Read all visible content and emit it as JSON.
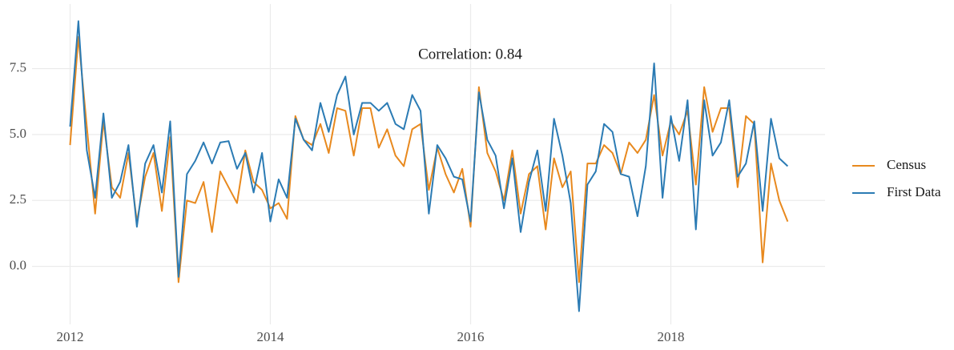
{
  "chart_data": {
    "type": "line",
    "annotation": "Correlation: 0.84",
    "x": [
      2012,
      2012.083,
      2012.167,
      2012.25,
      2012.333,
      2012.417,
      2012.5,
      2012.583,
      2012.667,
      2012.75,
      2012.833,
      2012.917,
      2013,
      2013.083,
      2013.167,
      2013.25,
      2013.333,
      2013.417,
      2013.5,
      2013.583,
      2013.667,
      2013.75,
      2013.833,
      2013.917,
      2014,
      2014.083,
      2014.167,
      2014.25,
      2014.333,
      2014.417,
      2014.5,
      2014.583,
      2014.667,
      2014.75,
      2014.833,
      2014.917,
      2015,
      2015.083,
      2015.167,
      2015.25,
      2015.333,
      2015.417,
      2015.5,
      2015.583,
      2015.667,
      2015.75,
      2015.833,
      2015.917,
      2016,
      2016.083,
      2016.167,
      2016.25,
      2016.333,
      2016.417,
      2016.5,
      2016.583,
      2016.667,
      2016.75,
      2016.833,
      2016.917,
      2017,
      2017.083,
      2017.167,
      2017.25,
      2017.333,
      2017.417,
      2017.5,
      2017.583,
      2017.667,
      2017.75,
      2017.833,
      2017.917,
      2018,
      2018.083,
      2018.167,
      2018.25,
      2018.333,
      2018.417,
      2018.5,
      2018.583,
      2018.667,
      2018.75,
      2018.833,
      2018.917,
      2019,
      2019.083,
      2019.167
    ],
    "series": [
      {
        "name": "Census",
        "color": "#e8891e",
        "values": [
          4.6,
          8.7,
          5.3,
          2.0,
          5.5,
          3.0,
          2.6,
          4.3,
          1.7,
          3.4,
          4.3,
          2.1,
          4.9,
          -0.6,
          2.5,
          2.4,
          3.2,
          1.3,
          3.6,
          3.0,
          2.4,
          4.4,
          3.2,
          2.9,
          2.2,
          2.4,
          1.8,
          5.7,
          4.8,
          4.6,
          5.4,
          4.3,
          6.0,
          5.9,
          4.2,
          6.0,
          6.0,
          4.5,
          5.2,
          4.2,
          3.8,
          5.2,
          5.4,
          2.9,
          4.5,
          3.5,
          2.8,
          3.7,
          1.5,
          6.8,
          4.3,
          3.6,
          2.5,
          4.4,
          2.0,
          3.5,
          3.8,
          1.4,
          4.1,
          3.0,
          3.6,
          -0.6,
          3.9,
          3.9,
          4.6,
          4.3,
          3.5,
          4.7,
          4.3,
          4.8,
          6.5,
          4.2,
          5.5,
          5.0,
          5.9,
          3.1,
          6.8,
          5.1,
          6.0,
          6.0,
          3.0,
          5.7,
          5.4,
          0.15,
          3.9,
          2.5,
          1.7
        ]
      },
      {
        "name": "First Data",
        "color": "#2b7bb4",
        "values": [
          5.3,
          9.3,
          4.4,
          2.6,
          5.8,
          2.6,
          3.2,
          4.6,
          1.5,
          3.9,
          4.6,
          2.8,
          5.5,
          -0.4,
          3.5,
          4.0,
          4.7,
          3.9,
          4.7,
          4.75,
          3.7,
          4.3,
          2.8,
          4.3,
          1.7,
          3.3,
          2.6,
          5.6,
          4.8,
          4.4,
          6.2,
          5.1,
          6.5,
          7.2,
          5.0,
          6.2,
          6.2,
          5.9,
          6.2,
          5.4,
          5.2,
          6.5,
          5.9,
          2.0,
          4.6,
          4.1,
          3.4,
          3.3,
          1.7,
          6.6,
          4.8,
          4.2,
          2.2,
          4.1,
          1.3,
          3.2,
          4.4,
          2.1,
          5.6,
          4.2,
          2.4,
          -1.7,
          3.1,
          3.6,
          5.4,
          5.1,
          3.5,
          3.4,
          1.9,
          3.8,
          7.7,
          2.6,
          5.7,
          4.0,
          6.3,
          1.4,
          6.3,
          4.2,
          4.7,
          6.3,
          3.4,
          3.9,
          5.5,
          2.1,
          5.6,
          4.1,
          3.8
        ]
      }
    ],
    "xlim": [
      2011.62,
      2019.54
    ],
    "xticks": [
      2012,
      2014,
      2016,
      2018
    ],
    "ylim": [
      -2.2,
      9.95
    ],
    "yticks": [
      {
        "value": 0,
        "label": "0.0"
      },
      {
        "value": 2.5,
        "label": "2.5"
      },
      {
        "value": 5,
        "label": "5.0"
      },
      {
        "value": 7.5,
        "label": "7.5"
      }
    ],
    "grid": true,
    "legend": "right"
  }
}
